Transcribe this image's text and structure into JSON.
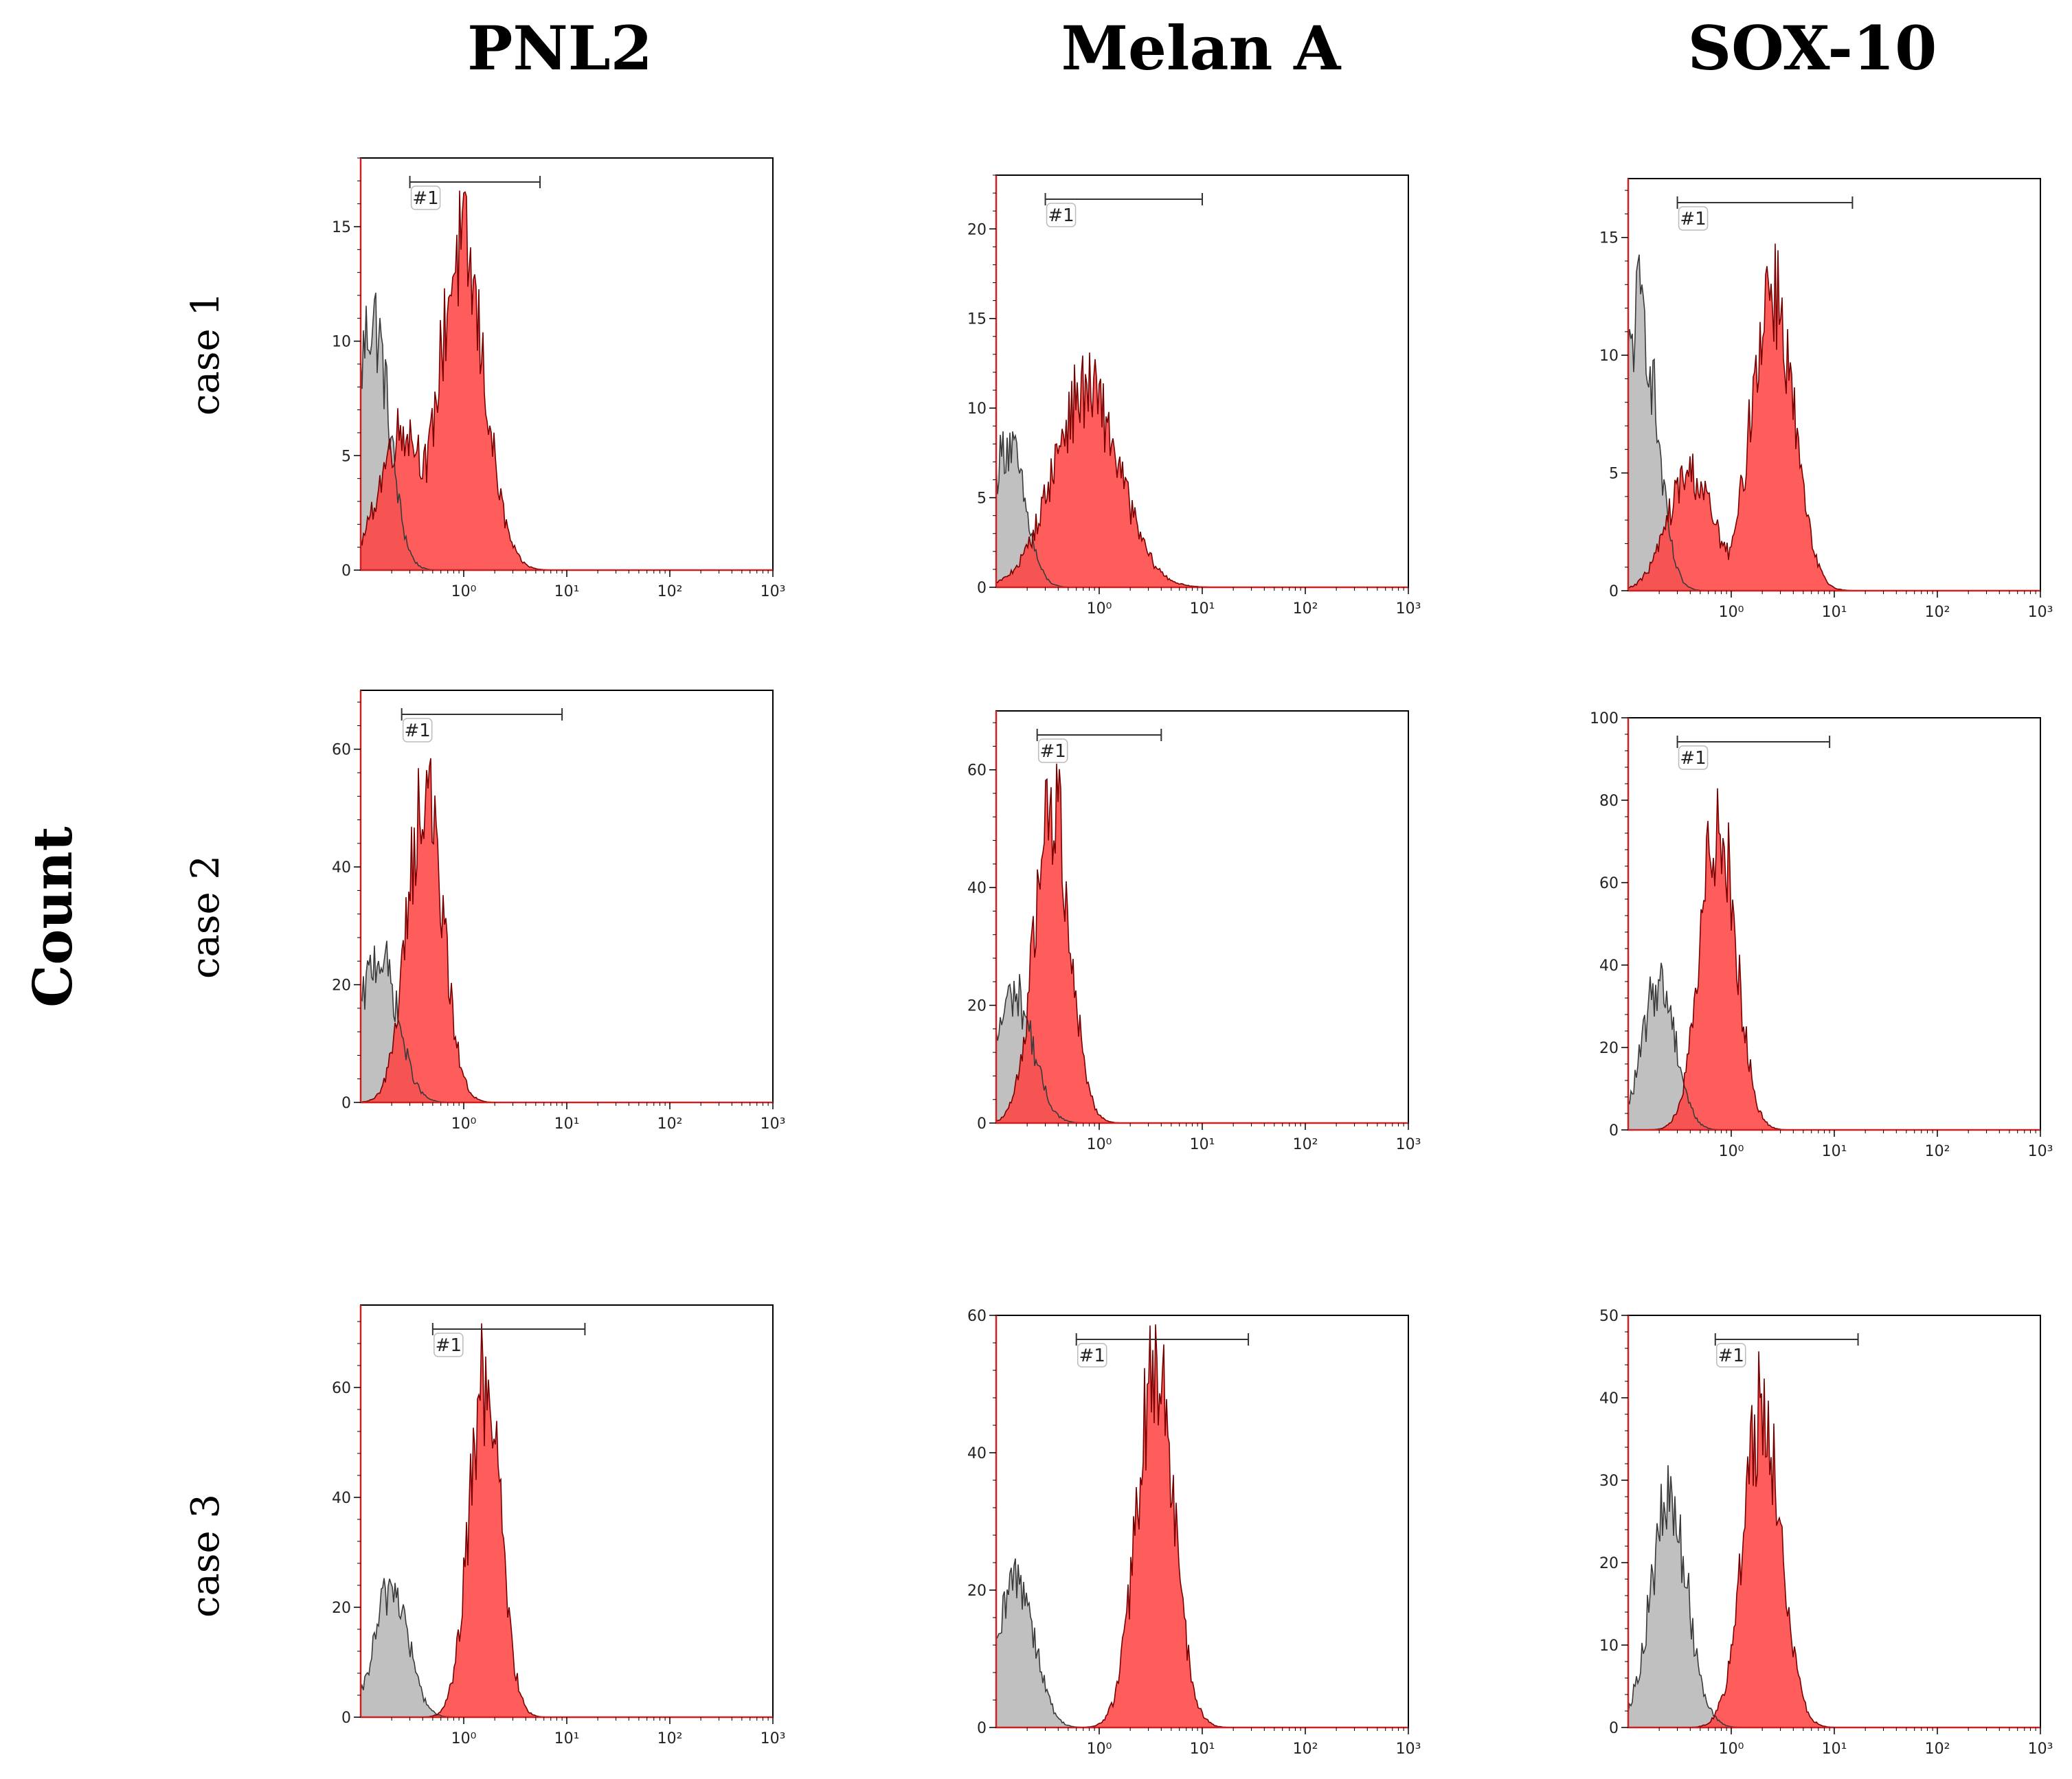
{
  "figure": {
    "y_title": "Count",
    "columns": [
      "PNL2",
      "Melan A",
      "SOX-10"
    ],
    "rows": [
      "case 1",
      "case 2",
      "case 3"
    ]
  },
  "colors": {
    "control_fill": "#b9b9b9",
    "control_line": "#3a3a3a",
    "stain_fill": "#ff4040",
    "stain_line": "#7a0000",
    "axis": "#000000",
    "axis_red": "#cc2222"
  },
  "chart_data": [
    {
      "type": "area",
      "panel": "case 1 / PNL2",
      "x_scale": "log",
      "xlim": [
        0.1,
        1000
      ],
      "ylim": [
        0,
        18
      ],
      "x_ticks": [
        "10⁰",
        "10¹",
        "10²",
        "10³"
      ],
      "y_ticks": [
        0,
        5,
        10,
        15
      ],
      "gate": {
        "label": "#1",
        "from": 0.3,
        "to": 5.5
      },
      "series": [
        {
          "role": "control",
          "peak_x": 0.13,
          "peak_y": 11,
          "spread": 0.16
        },
        {
          "role": "stained",
          "peak_x": 0.95,
          "peak_y": 14,
          "spread": 0.22,
          "shoulder_x": 0.25,
          "shoulder_y": 6
        }
      ]
    },
    {
      "type": "area",
      "panel": "case 1 / Melan A",
      "x_scale": "log",
      "xlim": [
        0.1,
        1000
      ],
      "ylim": [
        0,
        23
      ],
      "x_ticks": [
        "10⁰",
        "10¹",
        "10²",
        "10³"
      ],
      "y_ticks": [
        0,
        5,
        10,
        15,
        20
      ],
      "gate": {
        "label": "#1",
        "from": 0.3,
        "to": 10
      },
      "series": [
        {
          "role": "control",
          "peak_x": 0.13,
          "peak_y": 8,
          "spread": 0.16
        },
        {
          "role": "stained",
          "peak_x": 0.75,
          "peak_y": 11,
          "spread": 0.32
        }
      ]
    },
    {
      "type": "area",
      "panel": "case 1 / SOX-10",
      "x_scale": "log",
      "xlim": [
        0.1,
        1000
      ],
      "ylim": [
        0,
        17.5
      ],
      "x_ticks": [
        "10⁰",
        "10¹",
        "10²",
        "10³"
      ],
      "y_ticks": [
        0,
        5,
        10,
        15
      ],
      "gate": {
        "label": "#1",
        "from": 0.3,
        "to": 15
      },
      "series": [
        {
          "role": "control",
          "peak_x": 0.13,
          "peak_y": 12,
          "spread": 0.16
        },
        {
          "role": "stained",
          "peak_x": 2.5,
          "peak_y": 13,
          "spread": 0.2,
          "shoulder_x": 0.4,
          "shoulder_y": 5
        }
      ]
    },
    {
      "type": "area",
      "panel": "case 2 / PNL2",
      "x_scale": "log",
      "xlim": [
        0.1,
        1000
      ],
      "ylim": [
        0,
        70
      ],
      "x_ticks": [
        "10⁰",
        "10¹",
        "10²",
        "10³"
      ],
      "y_ticks": [
        0,
        20,
        40,
        60
      ],
      "gate": {
        "label": "#1",
        "from": 0.25,
        "to": 9
      },
      "series": [
        {
          "role": "control",
          "peak_x": 0.15,
          "peak_y": 25,
          "spread": 0.18
        },
        {
          "role": "stained",
          "peak_x": 0.42,
          "peak_y": 53,
          "spread": 0.17
        }
      ]
    },
    {
      "type": "area",
      "panel": "case 2 / Melan A",
      "x_scale": "log",
      "xlim": [
        0.1,
        1000
      ],
      "ylim": [
        0,
        70
      ],
      "x_ticks": [
        "10⁰",
        "10¹",
        "10²",
        "10³"
      ],
      "y_ticks": [
        0,
        20,
        40,
        60
      ],
      "gate": {
        "label": "#1",
        "from": 0.25,
        "to": 4
      },
      "series": [
        {
          "role": "control",
          "peak_x": 0.15,
          "peak_y": 22,
          "spread": 0.18
        },
        {
          "role": "stained",
          "peak_x": 0.35,
          "peak_y": 55,
          "spread": 0.17
        }
      ]
    },
    {
      "type": "area",
      "panel": "case 2 / SOX-10",
      "x_scale": "log",
      "xlim": [
        0.1,
        1000
      ],
      "ylim": [
        0,
        100
      ],
      "x_ticks": [
        "10⁰",
        "10¹",
        "10²",
        "10³"
      ],
      "y_ticks": [
        0,
        20,
        40,
        60,
        80,
        100
      ],
      "gate": {
        "label": "#1",
        "from": 0.3,
        "to": 9
      },
      "series": [
        {
          "role": "control",
          "peak_x": 0.2,
          "peak_y": 36,
          "spread": 0.16
        },
        {
          "role": "stained",
          "peak_x": 0.75,
          "peak_y": 76,
          "spread": 0.17
        }
      ]
    },
    {
      "type": "area",
      "panel": "case 3 / PNL2",
      "x_scale": "log",
      "xlim": [
        0.1,
        1000
      ],
      "ylim": [
        0,
        75
      ],
      "x_ticks": [
        "10⁰",
        "10¹",
        "10²",
        "10³"
      ],
      "y_ticks": [
        0,
        20,
        40,
        60
      ],
      "gate": {
        "label": "#1",
        "from": 0.5,
        "to": 15
      },
      "series": [
        {
          "role": "control",
          "peak_x": 0.2,
          "peak_y": 24,
          "spread": 0.16
        },
        {
          "role": "stained",
          "peak_x": 1.6,
          "peak_y": 62,
          "spread": 0.15
        }
      ]
    },
    {
      "type": "area",
      "panel": "case 3 / Melan A",
      "x_scale": "log",
      "xlim": [
        0.1,
        1000
      ],
      "ylim": [
        0,
        60
      ],
      "x_ticks": [
        "10⁰",
        "10¹",
        "10²",
        "10³"
      ],
      "y_ticks": [
        0,
        20,
        40,
        60
      ],
      "gate": {
        "label": "#1",
        "from": 0.6,
        "to": 28
      },
      "series": [
        {
          "role": "control",
          "peak_x": 0.16,
          "peak_y": 22,
          "spread": 0.17
        },
        {
          "role": "stained",
          "peak_x": 3.5,
          "peak_y": 52,
          "spread": 0.18
        }
      ]
    },
    {
      "type": "area",
      "panel": "case 3 / SOX-10",
      "x_scale": "log",
      "xlim": [
        0.1,
        1000
      ],
      "ylim": [
        0,
        50
      ],
      "x_ticks": [
        "10⁰",
        "10¹",
        "10²",
        "10³"
      ],
      "y_ticks": [
        0,
        10,
        20,
        30,
        40,
        50
      ],
      "gate": {
        "label": "#1",
        "from": 0.7,
        "to": 17
      },
      "series": [
        {
          "role": "control",
          "peak_x": 0.25,
          "peak_y": 27,
          "spread": 0.18
        },
        {
          "role": "stained",
          "peak_x": 2.0,
          "peak_y": 39,
          "spread": 0.18
        }
      ]
    }
  ]
}
